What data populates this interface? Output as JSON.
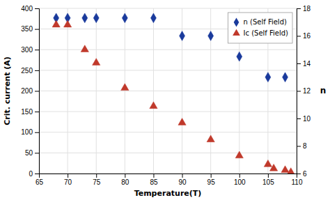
{
  "chart_data": {
    "type": "scatter",
    "xlabel": "Temperature(T)",
    "ylabel": "Crit. current (A)",
    "y2label": "n",
    "xlim": [
      65,
      110
    ],
    "ylim": [
      0,
      400
    ],
    "y2lim": [
      6,
      18
    ],
    "xticks": [
      65,
      70,
      75,
      80,
      85,
      90,
      95,
      100,
      105,
      110
    ],
    "yticks": [
      0,
      50,
      100,
      150,
      200,
      250,
      300,
      350,
      400
    ],
    "y2ticks": [
      6,
      8,
      10,
      12,
      14,
      16,
      18
    ],
    "grid": true,
    "legend": "upper right",
    "series": [
      {
        "name": "n (Self Field)",
        "color": "#1a3a9c",
        "marker": "diamond",
        "axis": "y2",
        "x": [
          68,
          70,
          73,
          75,
          80,
          85,
          90,
          95,
          100,
          105,
          108
        ],
        "values": [
          17.3,
          17.3,
          17.3,
          17.3,
          17.3,
          17.3,
          16.0,
          16.0,
          14.5,
          13.0,
          13.0
        ]
      },
      {
        "name": "Ic (Self Field)",
        "color": "#c0392b",
        "marker": "triangle",
        "x": [
          68,
          70,
          73,
          75,
          80,
          85,
          90,
          95,
          100,
          105,
          106,
          108,
          109
        ],
        "values": [
          360,
          360,
          300,
          268,
          207,
          163,
          123,
          82,
          43,
          22,
          12,
          8,
          3
        ]
      }
    ]
  }
}
